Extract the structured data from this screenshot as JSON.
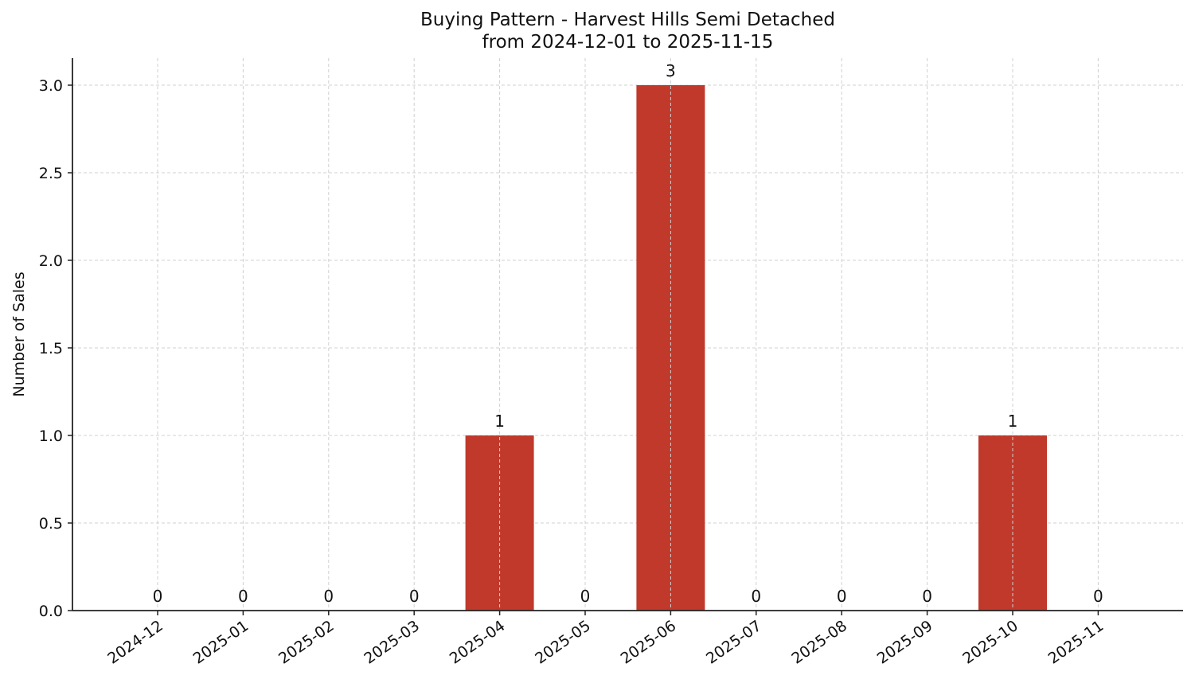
{
  "chart_data": {
    "type": "bar",
    "title": "Buying Pattern - Harvest Hills Semi Detached",
    "subtitle": "from 2024-12-01 to 2025-11-15",
    "xlabel": "",
    "ylabel": "Number of Sales",
    "categories": [
      "2024-12",
      "2025-01",
      "2025-02",
      "2025-03",
      "2025-04",
      "2025-05",
      "2025-06",
      "2025-07",
      "2025-08",
      "2025-09",
      "2025-10",
      "2025-11"
    ],
    "values": [
      0,
      0,
      0,
      0,
      1,
      0,
      3,
      0,
      0,
      0,
      1,
      0
    ],
    "data_labels": [
      "0",
      "0",
      "0",
      "0",
      "1",
      "0",
      "3",
      "0",
      "0",
      "0",
      "1",
      "0"
    ],
    "ylim": [
      0,
      3.15
    ],
    "yticks": [
      "0.0",
      "0.5",
      "1.0",
      "1.5",
      "2.0",
      "2.5",
      "3.0"
    ],
    "grid": true,
    "bar_color": "#c0392b",
    "legend": null
  }
}
